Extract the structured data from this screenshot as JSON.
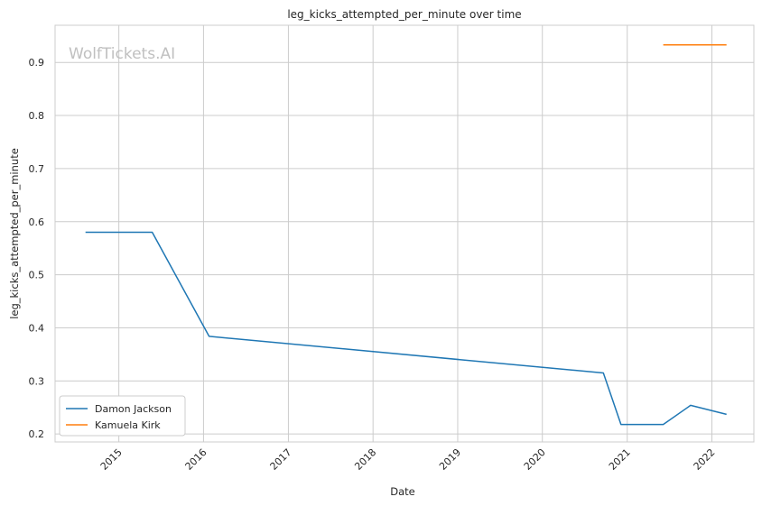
{
  "chart_data": {
    "type": "line",
    "title": "leg_kicks_attempted_per_minute over time",
    "xlabel": "Date",
    "ylabel": "leg_kicks_attempted_per_minute",
    "watermark": "WolfTickets.AI",
    "xlim": [
      "2014-04-01",
      "2022-07-01"
    ],
    "ylim": [
      0.185,
      0.97
    ],
    "x_ticks": [
      "2015",
      "2016",
      "2017",
      "2018",
      "2019",
      "2020",
      "2021",
      "2022"
    ],
    "y_ticks": [
      "0.2",
      "0.3",
      "0.4",
      "0.5",
      "0.6",
      "0.7",
      "0.8",
      "0.9"
    ],
    "grid": true,
    "legend_position": "lower-left",
    "series": [
      {
        "name": "Damon Jackson",
        "color": "#1f77b4",
        "points": [
          {
            "x": "2014-08-10",
            "y": 0.58
          },
          {
            "x": "2015-05-25",
            "y": 0.58
          },
          {
            "x": "2016-01-25",
            "y": 0.384
          },
          {
            "x": "2020-09-20",
            "y": 0.315
          },
          {
            "x": "2020-12-05",
            "y": 0.218
          },
          {
            "x": "2021-06-05",
            "y": 0.218
          },
          {
            "x": "2021-10-01",
            "y": 0.254
          },
          {
            "x": "2022-03-05",
            "y": 0.237
          }
        ]
      },
      {
        "name": "Kamuela Kirk",
        "color": "#ff7f0e",
        "points": [
          {
            "x": "2021-06-05",
            "y": 0.933
          },
          {
            "x": "2022-03-05",
            "y": 0.933
          }
        ]
      }
    ]
  }
}
